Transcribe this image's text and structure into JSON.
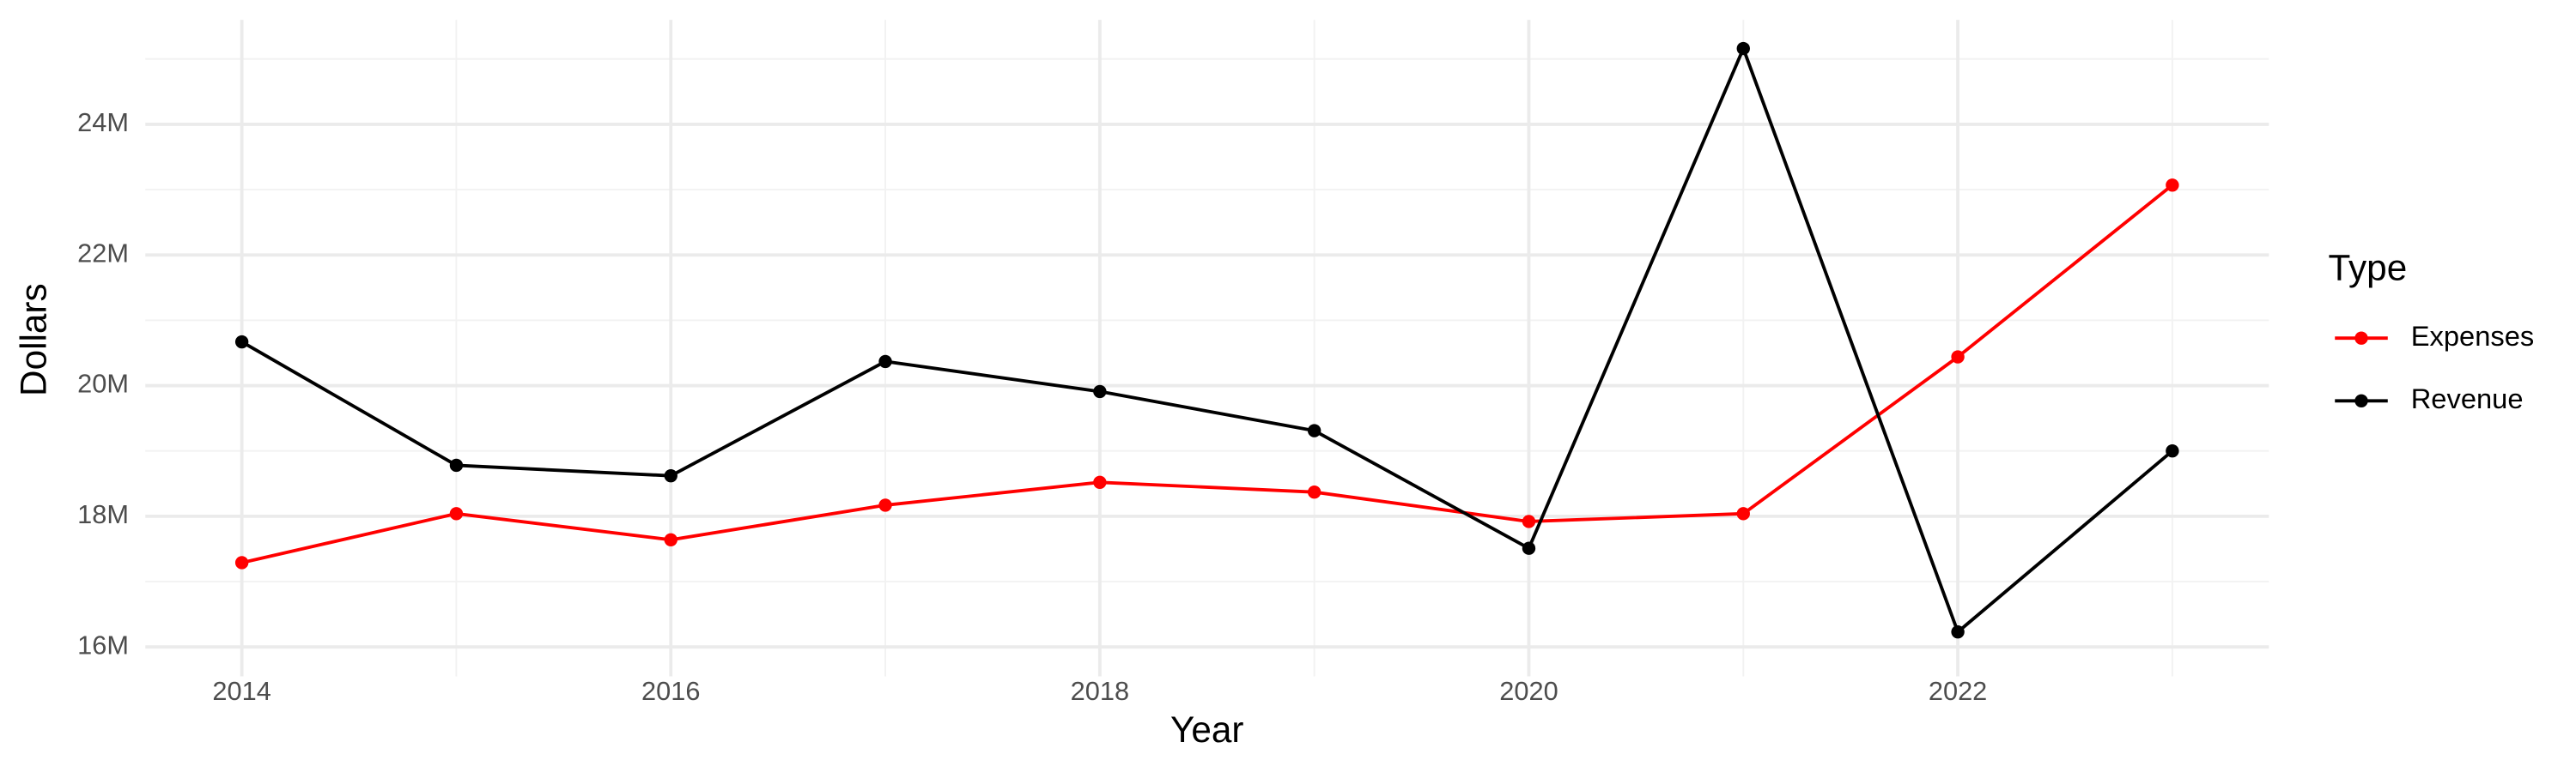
{
  "chart_data": {
    "type": "line",
    "x_label": "Year",
    "y_label": "Dollars",
    "legend_title": "Type",
    "x": [
      2014,
      2015,
      2016,
      2017,
      2018,
      2019,
      2020,
      2021,
      2022,
      2023
    ],
    "series": [
      {
        "name": "Expenses",
        "color": "#ff0000",
        "values": [
          17290000,
          18040000,
          17640000,
          18170000,
          18520000,
          18370000,
          17920000,
          18040000,
          20440000,
          23070000
        ]
      },
      {
        "name": "Revenue",
        "color": "#000000",
        "values": [
          20670000,
          18780000,
          18620000,
          20370000,
          19910000,
          19310000,
          17510000,
          25160000,
          16230000,
          19000000
        ]
      }
    ],
    "xlim": [
      2013.55,
      2023.45
    ],
    "ylim": [
      15550000,
      25600000
    ],
    "xticks": [
      2014,
      2016,
      2018,
      2020,
      2022
    ],
    "yticks": [
      {
        "value": 16000000,
        "label": "16M"
      },
      {
        "value": 18000000,
        "label": "18M"
      },
      {
        "value": 20000000,
        "label": "20M"
      },
      {
        "value": 22000000,
        "label": "22M"
      },
      {
        "value": 24000000,
        "label": "24M"
      }
    ],
    "grid": true,
    "legend_position": "right"
  }
}
